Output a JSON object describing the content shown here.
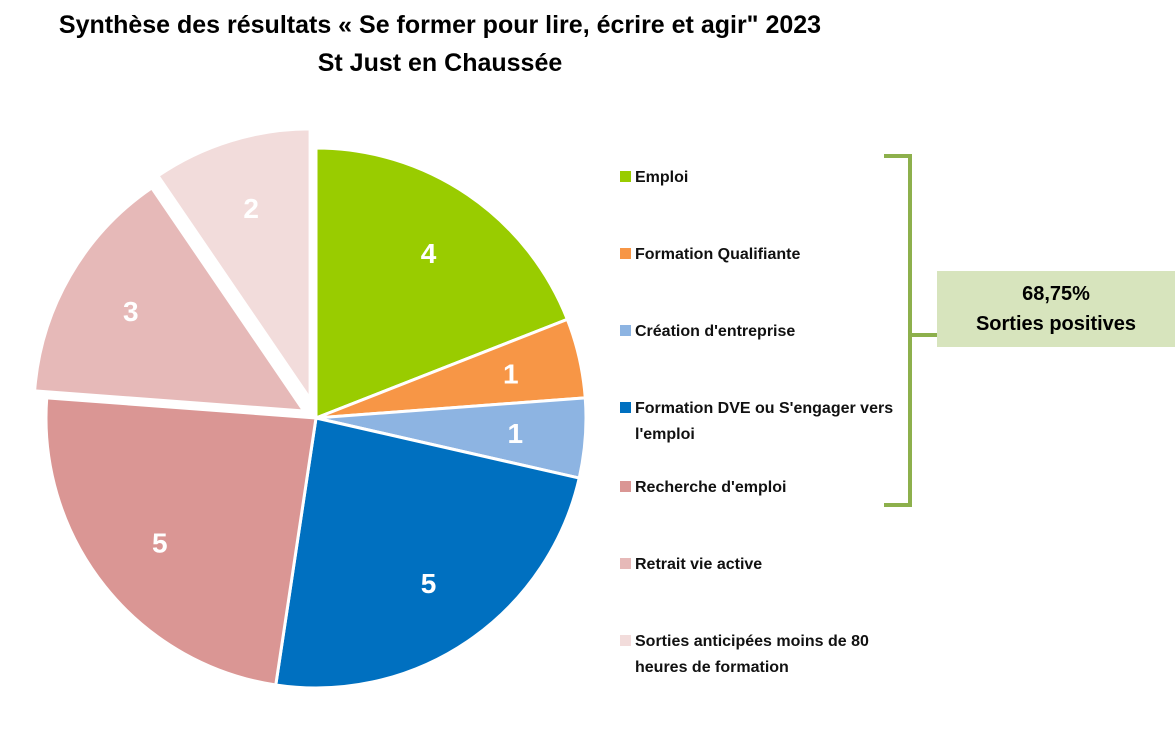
{
  "title_line1": "Synthèse des résultats « Se former pour lire, écrire et agir\" 2023",
  "title_line2": "St Just en Chaussée",
  "callout": {
    "line1": "68,75%",
    "line2": "Sorties positives",
    "background": "#d7e4bd",
    "bracket_color": "#8db04c"
  },
  "chart_data": {
    "type": "pie",
    "title": "Synthèse des résultats « Se former pour lire, écrire et agir\" 2023 St Just en Chaussée",
    "legend_position": "right",
    "categories": [
      "Emploi",
      "Formation Qualifiante",
      "Création d'entreprise",
      "Formation DVE ou S'engager vers l'emploi",
      "Recherche  d'emploi",
      "Retrait vie active",
      "Sorties anticipées moins de 80 heures de formation"
    ],
    "values": [
      4,
      1,
      1,
      5,
      5,
      3,
      2
    ],
    "data_labels": [
      "4",
      "1",
      "1",
      "5",
      "5",
      "3",
      "2"
    ],
    "colors": [
      "#99cc00",
      "#f79646",
      "#8db4e2",
      "#0070c0",
      "#da9694",
      "#e6b9b8",
      "#f2dcdb"
    ],
    "exploded": [
      "Sorties anticipées moins de 80 heures de formation",
      "Retrait vie active"
    ]
  }
}
